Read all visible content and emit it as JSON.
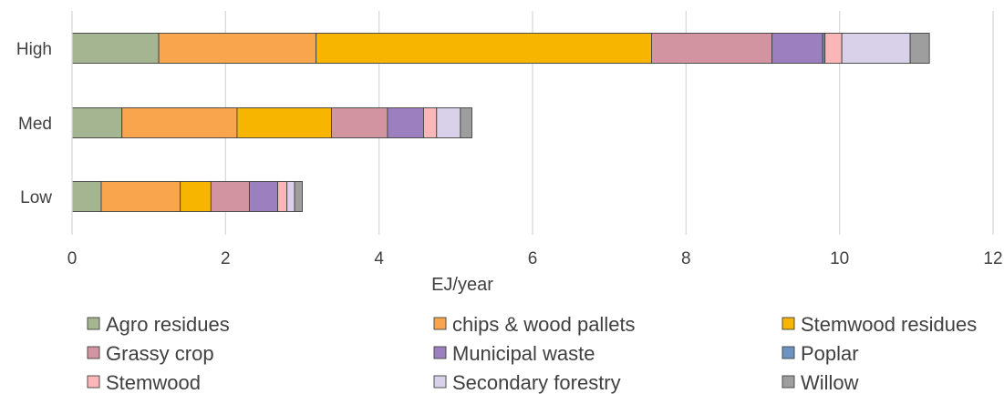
{
  "chart_data": {
    "type": "bar",
    "orientation": "horizontal",
    "stacked": true,
    "categories": [
      "High",
      "Med",
      "Low"
    ],
    "xlabel": "EJ/year",
    "xlim": [
      0,
      12
    ],
    "xticks": [
      0,
      2,
      4,
      6,
      8,
      10,
      12
    ],
    "grid": "vertical",
    "legend_position": "bottom",
    "series": [
      {
        "name": "Agro residues",
        "color": "#a5b592",
        "values": [
          1.13,
          0.65,
          0.38
        ]
      },
      {
        "name": "chips & wood pallets",
        "color": "#f9a54e",
        "values": [
          2.05,
          1.5,
          1.03
        ]
      },
      {
        "name": "Stemwood residues",
        "color": "#f7b500",
        "values": [
          4.37,
          1.23,
          0.4
        ]
      },
      {
        "name": "Grassy crop",
        "color": "#d394a1",
        "values": [
          1.57,
          0.73,
          0.5
        ]
      },
      {
        "name": "Municipal waste",
        "color": "#9c7fbf",
        "values": [
          0.66,
          0.47,
          0.37
        ]
      },
      {
        "name": "Poplar",
        "color": "#6d93c2",
        "values": [
          0.03,
          0.0,
          0.0
        ]
      },
      {
        "name": "Stemwood",
        "color": "#fbb6b8",
        "values": [
          0.22,
          0.17,
          0.12
        ]
      },
      {
        "name": "Secondary forestry",
        "color": "#d9d0e9",
        "values": [
          0.89,
          0.31,
          0.1
        ]
      },
      {
        "name": "Willow",
        "color": "#9e9e9e",
        "values": [
          0.25,
          0.15,
          0.1
        ]
      }
    ]
  }
}
